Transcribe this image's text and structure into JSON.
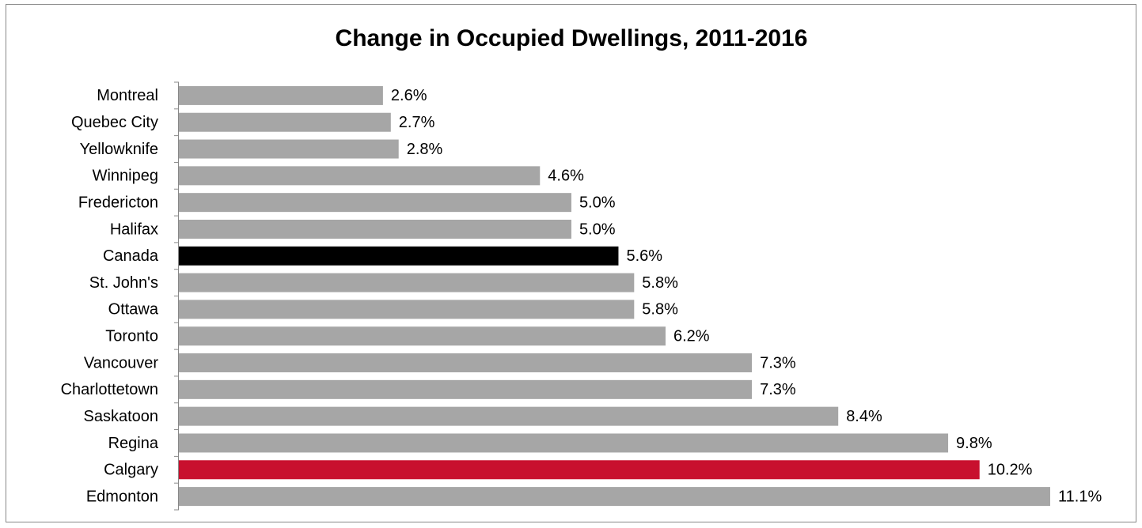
{
  "chart_data": {
    "type": "bar",
    "orientation": "horizontal",
    "title": "Change in Occupied Dwellings, 2011-2016",
    "categories": [
      "Montreal",
      "Quebec City",
      "Yellowknife",
      "Winnipeg",
      "Fredericton",
      "Halifax",
      "Canada",
      "St. John's",
      "Ottawa",
      "Toronto",
      "Vancouver",
      "Charlottetown",
      "Saskatoon",
      "Regina",
      "Calgary",
      "Edmonton"
    ],
    "values": [
      2.6,
      2.7,
      2.8,
      4.6,
      5.0,
      5.0,
      5.6,
      5.8,
      5.8,
      6.2,
      7.3,
      7.3,
      8.4,
      9.8,
      10.2,
      11.1
    ],
    "value_labels": [
      "2.6%",
      "2.7%",
      "2.8%",
      "4.6%",
      "5.0%",
      "5.0%",
      "5.6%",
      "5.8%",
      "5.8%",
      "6.2%",
      "7.3%",
      "7.3%",
      "8.4%",
      "9.8%",
      "10.2%",
      "11.1%"
    ],
    "colors": [
      "#a6a6a6",
      "#a6a6a6",
      "#a6a6a6",
      "#a6a6a6",
      "#a6a6a6",
      "#a6a6a6",
      "#000000",
      "#a6a6a6",
      "#a6a6a6",
      "#a6a6a6",
      "#a6a6a6",
      "#a6a6a6",
      "#a6a6a6",
      "#a6a6a6",
      "#c8102e",
      "#a6a6a6"
    ]
  }
}
